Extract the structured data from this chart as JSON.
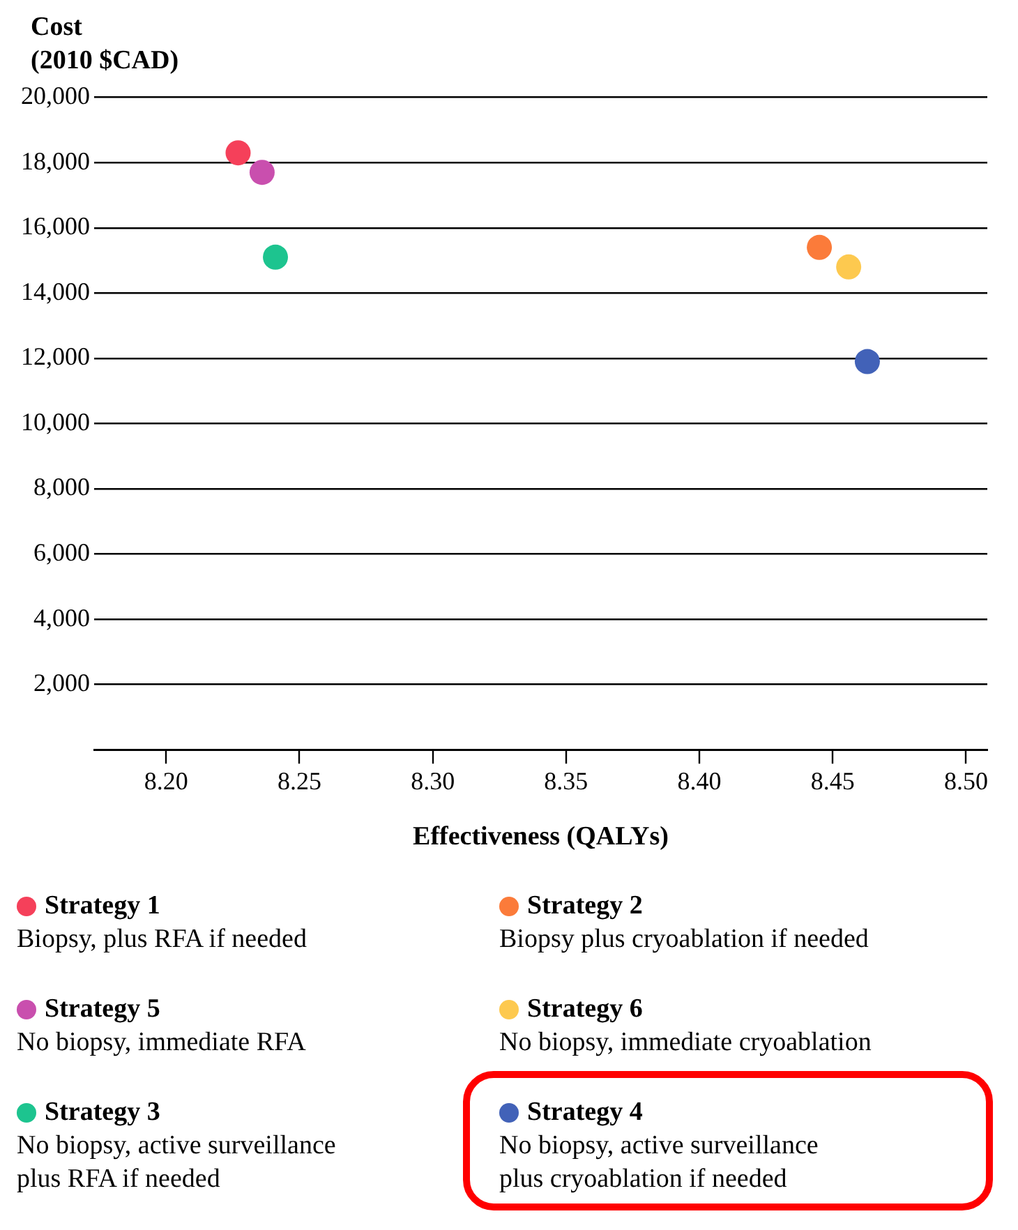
{
  "chart_data": {
    "type": "scatter",
    "ylabel": "Cost\n(2010 $CAD)",
    "xlabel": "Effectiveness (QALYs)",
    "xlim": [
      8.173,
      8.508
    ],
    "xticks": [
      {
        "value": 8.2,
        "label": "8.20"
      },
      {
        "value": 8.25,
        "label": "8.25"
      },
      {
        "value": 8.3,
        "label": "8.30"
      },
      {
        "value": 8.35,
        "label": "8.35"
      },
      {
        "value": 8.4,
        "label": "8.40"
      },
      {
        "value": 8.45,
        "label": "8.45"
      },
      {
        "value": 8.5,
        "label": "8.50"
      }
    ],
    "ylim": [
      0,
      20000
    ],
    "yticks": [
      {
        "value": 0,
        "label": null
      },
      {
        "value": 2000,
        "label": "2,000"
      },
      {
        "value": 4000,
        "label": "4,000"
      },
      {
        "value": 6000,
        "label": "6,000"
      },
      {
        "value": 8000,
        "label": "8,000"
      },
      {
        "value": 10000,
        "label": "10,000"
      },
      {
        "value": 12000,
        "label": "12,000"
      },
      {
        "value": 14000,
        "label": "14,000"
      },
      {
        "value": 16000,
        "label": "16,000"
      },
      {
        "value": 18000,
        "label": "18,000"
      },
      {
        "value": 20000,
        "label": "20,000"
      }
    ],
    "grid": "y",
    "legend": "bottom",
    "marker": "circle",
    "series": [
      {
        "name": "Strategy 1",
        "color": "#f5405a",
        "x": [
          8.227
        ],
        "values": [
          18300
        ]
      },
      {
        "name": "Strategy 2",
        "color": "#fb7b3a",
        "x": [
          8.445
        ],
        "values": [
          15400
        ]
      },
      {
        "name": "Strategy 5",
        "color": "#c94fae",
        "x": [
          8.236
        ],
        "values": [
          17700
        ]
      },
      {
        "name": "Strategy 6",
        "color": "#fdc94f",
        "x": [
          8.456
        ],
        "values": [
          14800
        ]
      },
      {
        "name": "Strategy 3",
        "color": "#1dc48f",
        "x": [
          8.241
        ],
        "values": [
          15100
        ]
      },
      {
        "name": "Strategy 4",
        "color": "#4262b8",
        "x": [
          8.463
        ],
        "values": [
          11900
        ]
      }
    ],
    "annotations": [
      "Biopsy, plus RFA if needed",
      "Biopsy plus cryoablation if needed",
      "No biopsy, immediate RFA",
      "No biopsy, immediate cryoablation",
      "No biopsy, active surveillance\nplus RFA if needed",
      "No biopsy, active surveillance\nplus cryoablation if needed"
    ]
  }
}
